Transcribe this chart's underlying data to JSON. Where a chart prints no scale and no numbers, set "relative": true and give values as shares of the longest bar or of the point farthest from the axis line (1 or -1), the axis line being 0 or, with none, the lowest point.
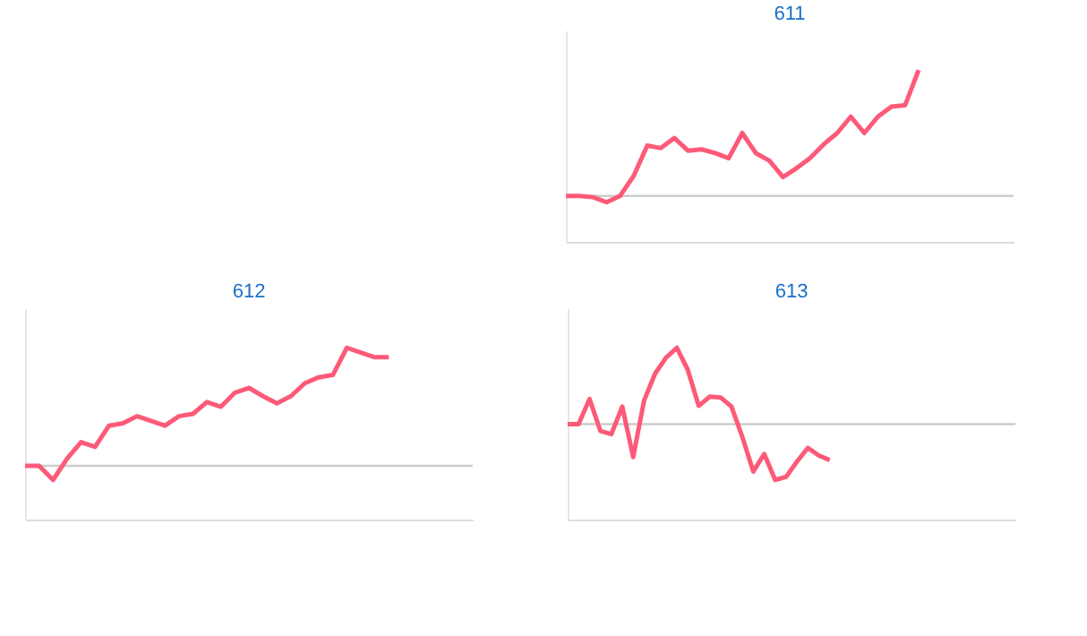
{
  "chart_data": [
    {
      "type": "line",
      "title": "611",
      "relative": true,
      "tick_labels": false,
      "line_style": "solid",
      "marker": "none",
      "categories": [
        null,
        null,
        null,
        null,
        null,
        null,
        null,
        null,
        null,
        null,
        null,
        null,
        null,
        null,
        null,
        null,
        null,
        null,
        null,
        null,
        null,
        null,
        null,
        null,
        null,
        null,
        null,
        null,
        null,
        null,
        null,
        null,
        null,
        null
      ],
      "series": [
        {
          "color": "#fc5a78",
          "values": [
            0.0,
            0.0,
            -0.01,
            -0.05,
            0.0,
            0.16,
            0.4,
            0.38,
            0.46,
            0.36,
            0.37,
            0.34,
            0.3,
            0.5,
            0.34,
            0.28,
            0.15,
            0.22,
            0.3,
            0.41,
            0.5,
            0.63,
            0.5,
            0.63,
            0.71,
            0.72,
            1.0,
            null,
            null,
            null,
            null,
            null,
            null,
            null
          ]
        }
      ]
    },
    {
      "type": "line",
      "title": "612",
      "relative": true,
      "tick_labels": false,
      "line_style": "solid",
      "marker": "none",
      "categories": [
        null,
        null,
        null,
        null,
        null,
        null,
        null,
        null,
        null,
        null,
        null,
        null,
        null,
        null,
        null,
        null,
        null,
        null,
        null,
        null,
        null,
        null,
        null,
        null,
        null,
        null,
        null,
        null,
        null,
        null,
        null,
        null,
        null
      ],
      "series": [
        {
          "color": "#fc5a78",
          "values": [
            0.0,
            0.0,
            -0.12,
            0.06,
            0.2,
            0.16,
            0.34,
            0.36,
            0.42,
            0.38,
            0.34,
            0.42,
            0.44,
            0.54,
            0.5,
            0.62,
            0.66,
            0.59,
            0.53,
            0.59,
            0.7,
            0.75,
            0.77,
            1.0,
            0.96,
            0.92,
            0.92,
            null,
            null,
            null,
            null,
            null,
            null
          ]
        }
      ]
    },
    {
      "type": "line",
      "title": "613",
      "relative": true,
      "tick_labels": false,
      "line_style": "solid",
      "marker": "none",
      "categories": [
        null,
        null,
        null,
        null,
        null,
        null,
        null,
        null,
        null,
        null,
        null,
        null,
        null,
        null,
        null,
        null,
        null,
        null,
        null,
        null,
        null,
        null,
        null,
        null,
        null,
        null,
        null,
        null,
        null,
        null,
        null,
        null,
        null,
        null,
        null,
        null,
        null,
        null,
        null,
        null,
        null,
        null
      ],
      "series": [
        {
          "color": "#fc5a78",
          "values": [
            0.0,
            0.0,
            0.33,
            -0.09,
            -0.13,
            0.23,
            -0.43,
            0.31,
            0.66,
            0.87,
            1.0,
            0.71,
            0.24,
            0.36,
            0.35,
            0.23,
            -0.17,
            -0.62,
            -0.39,
            -0.73,
            -0.69,
            -0.49,
            -0.31,
            -0.41,
            -0.47,
            null,
            null,
            null,
            null,
            null,
            null,
            null,
            null,
            null,
            null,
            null,
            null,
            null,
            null,
            null,
            null,
            null
          ]
        }
      ]
    }
  ]
}
